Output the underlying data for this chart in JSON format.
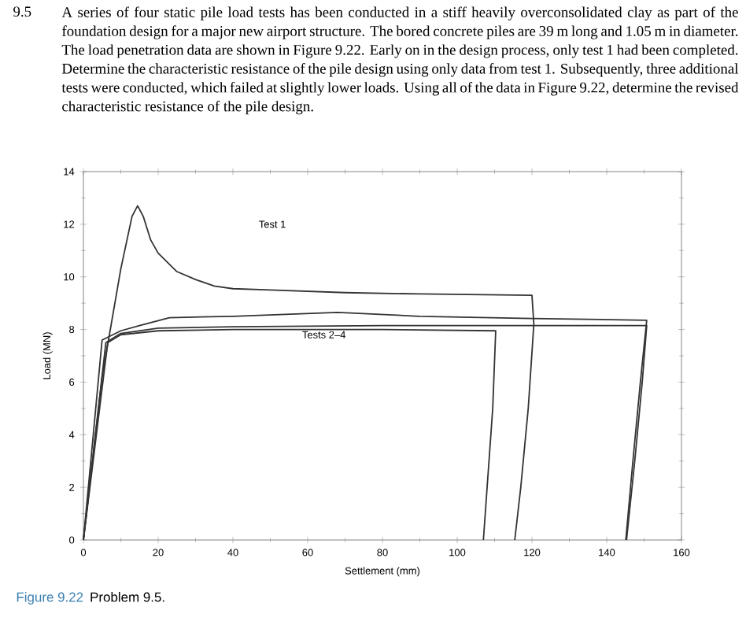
{
  "chart_data": {
    "type": "line",
    "xlabel": "Settlement (mm)",
    "ylabel": "Load (MN)",
    "annotations": [
      "9.5",
      "A series of four static pile load tests has been conducted in a stiff heavily overconsolidated clay as part of the foundation design for a major new airport structure. The bored concrete piles are 39 m long and 1.05 m in diameter. The load penetration data are shown in Figure 9.22. Early on in the design process, only test 1 had been completed. Determine the characteristic resistance of the pile design using only data from test 1. Subsequently, three additional tests were conducted, which failed at slightly lower loads. Using all of the data in Figure 9.22, determine the revised characteristic resistance of the pile design.",
      "Figure 9.22",
      "Problem 9.5.",
      "Test 1",
      {
        "text": "Tests 2–4",
        "x": 58,
        "y": 7.8
      }
    ],
    "series": [
      {
        "color": "#333333",
        "x": [
          0,
          5,
          10,
          13,
          14.5,
          16,
          18,
          20,
          25,
          30,
          35,
          40,
          50,
          70,
          90,
          120,
          120.5,
          119,
          117,
          115.4
        ],
        "values": [
          0,
          6.2,
          10.3,
          12.3,
          12.7,
          12.3,
          11.4,
          10.9,
          10.2,
          9.9,
          9.65,
          9.55,
          9.5,
          9.4,
          9.35,
          9.3,
          8.2,
          5,
          2,
          0
        ]
      },
      {
        "color": "#333333",
        "x": [
          0,
          5,
          10,
          15,
          23,
          40,
          68,
          90,
          120,
          150.7,
          149,
          147,
          145.1
        ],
        "values": [
          0,
          7.6,
          7.95,
          8.15,
          8.45,
          8.5,
          8.65,
          8.5,
          8.42,
          8.35,
          6,
          3,
          0
        ]
      },
      {
        "color": "#333333",
        "x": [
          0,
          6,
          10,
          20,
          40,
          80,
          150.7,
          149.5,
          147.5,
          145.3
        ],
        "values": [
          0,
          7.5,
          7.85,
          8.05,
          8.1,
          8.15,
          8.15,
          6,
          3,
          0
        ]
      },
      {
        "color": "#333333",
        "x": [
          0,
          6.5,
          10,
          20,
          40,
          80,
          110.3,
          109.5,
          108,
          107
        ],
        "values": [
          0,
          7.5,
          7.8,
          7.95,
          8.0,
          8.0,
          7.95,
          5,
          2,
          0
        ]
      }
    ],
    "xlim": [
      0,
      160
    ],
    "ylim": [
      0,
      14
    ],
    "xticks": [
      0,
      20,
      40,
      60,
      80,
      100,
      120,
      140,
      160
    ],
    "yticks": [
      0,
      2,
      4,
      6,
      8,
      10,
      12,
      14
    ],
    "grid": false,
    "marker": "none",
    "line_style": "solid"
  }
}
